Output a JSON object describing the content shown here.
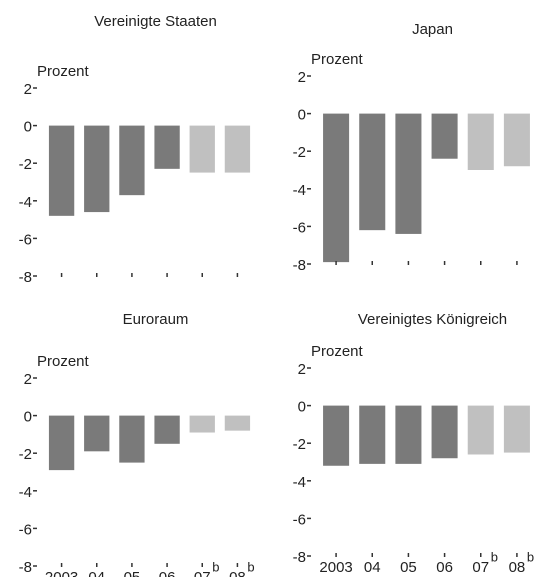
{
  "chart_data": [
    {
      "type": "bar",
      "title": "Vereinigte Staaten",
      "y_label": "Prozent",
      "categories": [
        null,
        null,
        null,
        null,
        null,
        null
      ],
      "category_notes": [
        null,
        null,
        null,
        null,
        null,
        null
      ],
      "values": [
        -4.8,
        -4.6,
        -3.7,
        -2.3,
        -2.5,
        -2.5
      ],
      "colors": [
        "#7a7a7a",
        "#7a7a7a",
        "#7a7a7a",
        "#7a7a7a",
        "#c0c0c0",
        "#c0c0c0"
      ],
      "ylim": [
        -8,
        2
      ],
      "yticks": [
        2,
        0,
        -2,
        -4,
        -6,
        -8
      ]
    },
    {
      "type": "bar",
      "title": "Japan",
      "y_label": "Prozent",
      "categories": [
        null,
        null,
        null,
        null,
        null,
        null
      ],
      "category_notes": [
        null,
        null,
        null,
        null,
        null,
        null
      ],
      "values": [
        -7.9,
        -6.2,
        -6.4,
        -2.4,
        -3.0,
        -2.8
      ],
      "colors": [
        "#7a7a7a",
        "#7a7a7a",
        "#7a7a7a",
        "#7a7a7a",
        "#c0c0c0",
        "#c0c0c0"
      ],
      "ylim": [
        -8,
        2
      ],
      "yticks": [
        2,
        0,
        -2,
        -4,
        -6,
        -8
      ]
    },
    {
      "type": "bar",
      "title": "Euroraum",
      "y_label": "Prozent",
      "categories": [
        "2003",
        "04",
        "05",
        "06",
        "07",
        "08"
      ],
      "category_notes": [
        null,
        null,
        null,
        null,
        "b",
        "b"
      ],
      "values": [
        -2.9,
        -1.9,
        -2.5,
        -1.5,
        -0.9,
        -0.8
      ],
      "colors": [
        "#7a7a7a",
        "#7a7a7a",
        "#7a7a7a",
        "#7a7a7a",
        "#c0c0c0",
        "#c0c0c0"
      ],
      "ylim": [
        -8,
        2
      ],
      "yticks": [
        2,
        0,
        -2,
        -4,
        -6,
        -8
      ]
    },
    {
      "type": "bar",
      "title": "Vereinigtes Königreich",
      "y_label": "Prozent",
      "categories": [
        "2003",
        "04",
        "05",
        "06",
        "07",
        "08"
      ],
      "category_notes": [
        null,
        null,
        null,
        null,
        "b",
        "b"
      ],
      "values": [
        -3.2,
        -3.1,
        -3.1,
        -2.8,
        -2.6,
        -2.5
      ],
      "colors": [
        "#7a7a7a",
        "#7a7a7a",
        "#7a7a7a",
        "#7a7a7a",
        "#c0c0c0",
        "#c0c0c0"
      ],
      "ylim": [
        -8,
        2
      ],
      "yticks": [
        2,
        0,
        -2,
        -4,
        -6,
        -8
      ]
    }
  ]
}
